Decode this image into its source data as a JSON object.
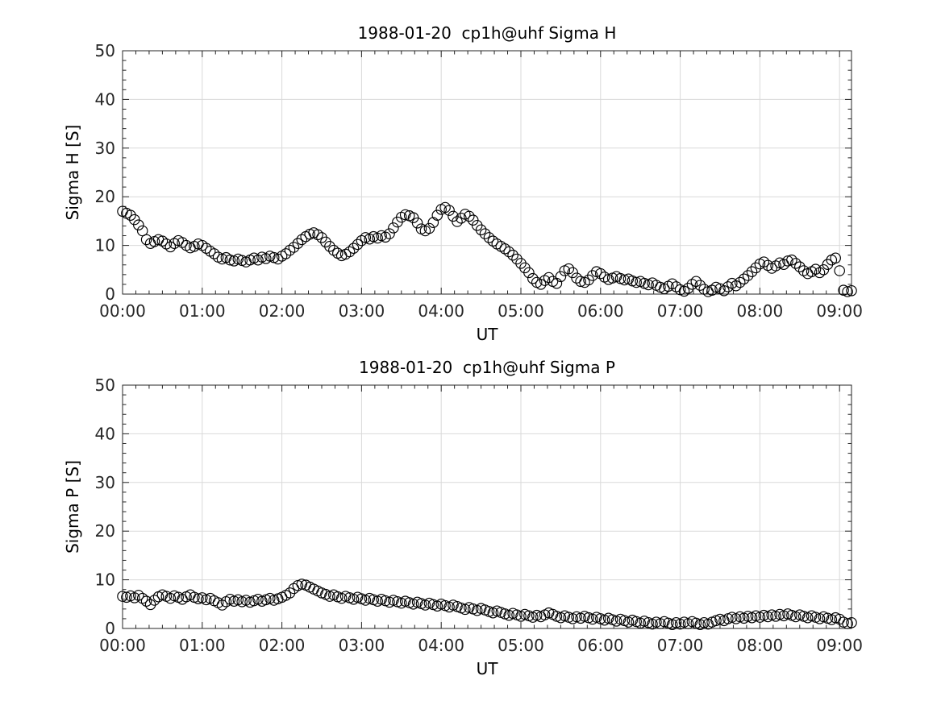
{
  "figure": {
    "background": "#ffffff",
    "text_color": "#262626",
    "grid_color": "#d9d9d9",
    "axis_color": "#262626",
    "marker_color": "#000000"
  },
  "chart_data": [
    {
      "type": "scatter",
      "name": "sigma-h-panel",
      "title": "1988-01-20  cp1h@uhf Sigma H",
      "xlabel": "UT",
      "ylabel": "Sigma H [S]",
      "xlim_minutes": [
        0,
        549
      ],
      "ylim": [
        0,
        50
      ],
      "grid": true,
      "legend": "none",
      "marker": "open-circle",
      "x_major_ticks_minutes": [
        0,
        60,
        120,
        180,
        240,
        300,
        360,
        420,
        480,
        540
      ],
      "x_tick_labels": [
        "00:00",
        "01:00",
        "02:00",
        "03:00",
        "04:00",
        "05:00",
        "06:00",
        "07:00",
        "08:00",
        "09:00"
      ],
      "x_minor_step_minutes": 10,
      "y_major_ticks": [
        0,
        10,
        20,
        30,
        40,
        50
      ],
      "y_minor_step": 2,
      "x_minutes": [
        0,
        3,
        6,
        9,
        12,
        15,
        18,
        21,
        24,
        27,
        30,
        33,
        36,
        39,
        42,
        45,
        48,
        51,
        54,
        57,
        60,
        63,
        66,
        69,
        72,
        75,
        78,
        81,
        84,
        87,
        90,
        93,
        96,
        99,
        102,
        105,
        108,
        111,
        114,
        117,
        120,
        123,
        126,
        129,
        132,
        135,
        138,
        141,
        144,
        147,
        150,
        153,
        156,
        159,
        162,
        165,
        168,
        171,
        174,
        177,
        180,
        183,
        186,
        189,
        192,
        195,
        198,
        201,
        204,
        207,
        210,
        213,
        216,
        219,
        222,
        225,
        228,
        231,
        234,
        237,
        240,
        243,
        246,
        249,
        252,
        255,
        258,
        261,
        264,
        267,
        270,
        273,
        276,
        279,
        282,
        285,
        288,
        291,
        294,
        297,
        300,
        303,
        306,
        309,
        312,
        315,
        318,
        321,
        324,
        327,
        330,
        333,
        336,
        339,
        342,
        345,
        348,
        351,
        354,
        357,
        360,
        363,
        366,
        369,
        372,
        375,
        378,
        381,
        384,
        387,
        390,
        393,
        396,
        399,
        402,
        405,
        408,
        411,
        414,
        417,
        420,
        423,
        426,
        429,
        432,
        435,
        438,
        441,
        444,
        447,
        450,
        453,
        456,
        459,
        462,
        465,
        468,
        471,
        474,
        477,
        480,
        483,
        486,
        489,
        492,
        495,
        498,
        501,
        504,
        507,
        510,
        513,
        516,
        519,
        522,
        525,
        528,
        531,
        534,
        537,
        540,
        543,
        546,
        549
      ],
      "y": [
        17.0,
        16.6,
        16.2,
        15.3,
        14.2,
        13.0,
        11.2,
        10.4,
        10.8,
        11.2,
        10.9,
        10.3,
        9.7,
        10.4,
        11.0,
        10.6,
        10.0,
        9.5,
        9.8,
        10.3,
        10.0,
        9.4,
        8.8,
        8.3,
        7.6,
        7.2,
        7.5,
        7.0,
        6.8,
        7.2,
        6.9,
        6.6,
        7.0,
        7.4,
        7.0,
        7.6,
        7.3,
        7.8,
        7.5,
        7.2,
        7.8,
        8.3,
        9.0,
        9.6,
        10.4,
        11.2,
        11.8,
        12.3,
        12.6,
        12.2,
        11.6,
        10.7,
        9.8,
        9.0,
        8.4,
        7.9,
        8.2,
        8.7,
        9.4,
        10.2,
        11.0,
        11.6,
        11.3,
        11.8,
        11.5,
        12.0,
        11.7,
        12.4,
        13.6,
        14.8,
        15.8,
        16.3,
        16.1,
        15.7,
        14.6,
        13.4,
        13.0,
        13.5,
        14.7,
        16.2,
        17.4,
        17.8,
        17.2,
        16.0,
        14.9,
        15.6,
        16.4,
        16.0,
        15.2,
        14.1,
        13.2,
        12.4,
        11.6,
        10.9,
        10.3,
        9.8,
        9.3,
        8.7,
        8.0,
        7.2,
        6.3,
        5.4,
        4.4,
        3.2,
        2.4,
        2.0,
        2.8,
        3.4,
        2.6,
        2.2,
        3.6,
        4.8,
        5.2,
        4.4,
        3.3,
        2.6,
        2.4,
        2.9,
        3.8,
        4.6,
        4.2,
        3.5,
        3.0,
        3.3,
        3.6,
        3.2,
        2.9,
        3.1,
        2.7,
        2.4,
        2.6,
        2.2,
        1.9,
        2.3,
        1.8,
        1.4,
        1.1,
        1.6,
        2.1,
        1.5,
        0.9,
        0.6,
        1.2,
        2.0,
        2.6,
        1.8,
        1.0,
        0.5,
        0.8,
        1.4,
        1.1,
        0.7,
        1.5,
        2.2,
        1.7,
        2.4,
        3.1,
        3.8,
        4.6,
        5.4,
        6.2,
        6.6,
        5.9,
        5.3,
        5.8,
        6.4,
        6.1,
        6.8,
        7.0,
        6.3,
        5.6,
        4.8,
        4.2,
        4.6,
        5.1,
        4.4,
        5.0,
        6.1,
        7.0,
        7.4,
        4.8,
        0.8,
        0.5,
        0.7
      ]
    },
    {
      "type": "scatter",
      "name": "sigma-p-panel",
      "title": "1988-01-20  cp1h@uhf Sigma P",
      "xlabel": "UT",
      "ylabel": "Sigma P [S]",
      "xlim_minutes": [
        0,
        549
      ],
      "ylim": [
        0,
        50
      ],
      "grid": true,
      "legend": "none",
      "marker": "open-circle",
      "x_major_ticks_minutes": [
        0,
        60,
        120,
        180,
        240,
        300,
        360,
        420,
        480,
        540
      ],
      "x_tick_labels": [
        "00:00",
        "01:00",
        "02:00",
        "03:00",
        "04:00",
        "05:00",
        "06:00",
        "07:00",
        "08:00",
        "09:00"
      ],
      "x_minor_step_minutes": 10,
      "y_major_ticks": [
        0,
        10,
        20,
        30,
        40,
        50
      ],
      "y_minor_step": 2,
      "x_minutes": [
        0,
        3,
        6,
        9,
        12,
        15,
        18,
        21,
        24,
        27,
        30,
        33,
        36,
        39,
        42,
        45,
        48,
        51,
        54,
        57,
        60,
        63,
        66,
        69,
        72,
        75,
        78,
        81,
        84,
        87,
        90,
        93,
        96,
        99,
        102,
        105,
        108,
        111,
        114,
        117,
        120,
        123,
        126,
        129,
        132,
        135,
        138,
        141,
        144,
        147,
        150,
        153,
        156,
        159,
        162,
        165,
        168,
        171,
        174,
        177,
        180,
        183,
        186,
        189,
        192,
        195,
        198,
        201,
        204,
        207,
        210,
        213,
        216,
        219,
        222,
        225,
        228,
        231,
        234,
        237,
        240,
        243,
        246,
        249,
        252,
        255,
        258,
        261,
        264,
        267,
        270,
        273,
        276,
        279,
        282,
        285,
        288,
        291,
        294,
        297,
        300,
        303,
        306,
        309,
        312,
        315,
        318,
        321,
        324,
        327,
        330,
        333,
        336,
        339,
        342,
        345,
        348,
        351,
        354,
        357,
        360,
        363,
        366,
        369,
        372,
        375,
        378,
        381,
        384,
        387,
        390,
        393,
        396,
        399,
        402,
        405,
        408,
        411,
        414,
        417,
        420,
        423,
        426,
        429,
        432,
        435,
        438,
        441,
        444,
        447,
        450,
        453,
        456,
        459,
        462,
        465,
        468,
        471,
        474,
        477,
        480,
        483,
        486,
        489,
        492,
        495,
        498,
        501,
        504,
        507,
        510,
        513,
        516,
        519,
        522,
        525,
        528,
        531,
        534,
        537,
        540,
        543,
        546,
        549
      ],
      "y": [
        6.6,
        6.4,
        6.7,
        6.3,
        6.8,
        6.2,
        5.6,
        4.9,
        5.8,
        6.5,
        6.9,
        6.6,
        6.2,
        6.7,
        6.4,
        6.0,
        6.5,
        6.9,
        6.4,
        6.1,
        6.3,
        5.9,
        6.2,
        5.7,
        5.3,
        4.8,
        5.5,
        6.0,
        5.6,
        5.9,
        5.5,
        5.8,
        5.4,
        5.7,
        6.0,
        5.6,
        5.9,
        6.2,
        5.8,
        6.1,
        6.4,
        6.8,
        7.3,
        8.2,
        8.8,
        9.1,
        8.9,
        8.5,
        8.1,
        7.7,
        7.3,
        7.0,
        6.6,
        6.9,
        6.5,
        6.2,
        6.6,
        6.3,
        6.0,
        6.4,
        6.1,
        5.8,
        6.2,
        5.9,
        5.6,
        6.0,
        5.7,
        5.4,
        5.8,
        5.5,
        5.2,
        5.6,
        5.3,
        5.0,
        5.4,
        5.1,
        4.8,
        5.2,
        4.9,
        4.6,
        5.0,
        4.7,
        4.4,
        4.8,
        4.5,
        4.2,
        3.9,
        4.3,
        4.0,
        3.7,
        4.1,
        3.8,
        3.5,
        3.2,
        3.6,
        3.3,
        3.0,
        2.7,
        3.1,
        2.8,
        2.5,
        2.9,
        2.6,
        2.3,
        2.7,
        2.4,
        2.8,
        3.2,
        2.9,
        2.5,
        2.2,
        2.6,
        2.3,
        2.0,
        2.4,
        2.1,
        2.5,
        2.2,
        1.9,
        2.3,
        2.0,
        1.7,
        2.1,
        1.8,
        1.5,
        1.9,
        1.6,
        1.3,
        1.7,
        1.4,
        1.1,
        1.5,
        1.2,
        0.9,
        1.3,
        1.0,
        1.4,
        1.1,
        0.8,
        1.2,
        0.9,
        1.3,
        1.0,
        1.4,
        1.1,
        0.8,
        1.2,
        0.9,
        1.3,
        1.6,
        1.9,
        1.6,
        2.0,
        2.3,
        2.0,
        2.4,
        2.1,
        2.5,
        2.2,
        2.6,
        2.3,
        2.7,
        2.4,
        2.8,
        2.5,
        2.9,
        2.6,
        3.0,
        2.7,
        2.4,
        2.8,
        2.5,
        2.2,
        2.6,
        2.3,
        2.0,
        2.4,
        2.1,
        1.8,
        2.2,
        1.9,
        1.3,
        1.0,
        1.2
      ]
    }
  ]
}
